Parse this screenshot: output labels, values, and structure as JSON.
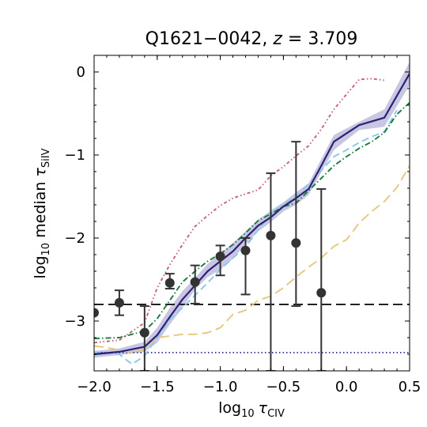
{
  "chart_data": {
    "type": "line",
    "title": "Q1621−0042, z = 3.709",
    "title_main": "Q1621−0042, ",
    "title_var": "z",
    "title_rest": " = 3.709",
    "xlabel": "log₁₀ τCIV",
    "ylabel": "log₁₀ median τSiIV",
    "xlabel_parts": {
      "pre": "log",
      "sub1": "10",
      "sym": "τ",
      "sub2": "CIV"
    },
    "ylabel_parts": {
      "pre": "log",
      "sub1": "10",
      "mid": " median ",
      "sym": "τ",
      "sub2": "SiIV"
    },
    "xlim": [
      -2.0,
      0.5
    ],
    "ylim": [
      -3.6,
      0.2
    ],
    "xticks": [
      -2.0,
      -1.5,
      -1.0,
      -0.5,
      0.0,
      0.5
    ],
    "xtick_labels": [
      "−2.0",
      "−1.5",
      "−1.0",
      "−0.5",
      "0.0",
      "0.5"
    ],
    "yticks": [
      0,
      -1,
      -2,
      -3
    ],
    "ytick_labels": [
      "0",
      "−1",
      "−2",
      "−3"
    ],
    "grid": false,
    "band": {
      "color": "#c9c6e3",
      "x": [
        -2.0,
        -1.8,
        -1.6,
        -1.5,
        -1.4,
        -1.3,
        -1.2,
        -1.1,
        -1.0,
        -0.9,
        -0.8,
        -0.7,
        -0.6,
        -0.5,
        -0.4,
        -0.3,
        -0.2,
        -0.1,
        0.1,
        0.3,
        0.5
      ],
      "upper": [
        -3.36,
        -3.33,
        -3.25,
        -3.08,
        -2.84,
        -2.64,
        -2.48,
        -2.31,
        -2.19,
        -2.06,
        -1.92,
        -1.78,
        -1.67,
        -1.57,
        -1.45,
        -1.34,
        -1.05,
        -0.76,
        -0.6,
        -0.45,
        0.12
      ],
      "lower": [
        -3.44,
        -3.41,
        -3.37,
        -3.26,
        -3.04,
        -2.84,
        -2.62,
        -2.47,
        -2.38,
        -2.25,
        -2.08,
        -1.92,
        -1.81,
        -1.68,
        -1.6,
        -1.48,
        -1.21,
        -0.94,
        -0.7,
        -0.66,
        -0.16
      ]
    },
    "series": [
      {
        "style": "solid",
        "color": "#2a2374",
        "width": 2.2,
        "x": [
          -2.0,
          -1.8,
          -1.6,
          -1.5,
          -1.4,
          -1.3,
          -1.2,
          -1.1,
          -1.0,
          -0.9,
          -0.8,
          -0.7,
          -0.6,
          -0.5,
          -0.4,
          -0.3,
          -0.2,
          -0.1,
          0.1,
          0.3,
          0.5
        ],
        "y": [
          -3.4,
          -3.37,
          -3.31,
          -3.17,
          -2.95,
          -2.74,
          -2.57,
          -2.4,
          -2.28,
          -2.16,
          -2.0,
          -1.85,
          -1.75,
          -1.62,
          -1.52,
          -1.41,
          -1.13,
          -0.84,
          -0.64,
          -0.55,
          -0.02
        ]
      },
      {
        "style": "dashed",
        "color": "#88c9e8",
        "width": 1.9,
        "x": [
          -2.0,
          -1.8,
          -1.7,
          -1.6,
          -1.5,
          -1.4,
          -1.3,
          -1.2,
          -1.1,
          -1.0,
          -0.9,
          -0.8,
          -0.7,
          -0.6,
          -0.5,
          -0.4,
          -0.3,
          -0.2,
          -0.1,
          0.0,
          0.1,
          0.2,
          0.3,
          0.4
        ],
        "y": [
          -3.38,
          -3.4,
          -3.52,
          -3.42,
          -3.2,
          -2.98,
          -2.84,
          -2.69,
          -2.54,
          -2.38,
          -2.24,
          -2.11,
          -1.9,
          -1.71,
          -1.59,
          -1.5,
          -1.35,
          -1.19,
          -1.02,
          -0.94,
          -0.85,
          -0.78,
          -0.72,
          -0.46
        ]
      },
      {
        "style": "dashdot",
        "color": "#1b7a3e",
        "width": 1.9,
        "x": [
          -2.0,
          -1.8,
          -1.6,
          -1.5,
          -1.4,
          -1.3,
          -1.2,
          -1.1,
          -1.0,
          -0.9,
          -0.8,
          -0.7,
          -0.6,
          -0.5,
          -0.4,
          -0.3,
          -0.2,
          -0.1,
          0.0,
          0.1,
          0.2,
          0.3,
          0.4,
          0.5
        ],
        "y": [
          -3.21,
          -3.2,
          -3.12,
          -2.97,
          -2.75,
          -2.53,
          -2.4,
          -2.28,
          -2.19,
          -2.08,
          -1.94,
          -1.79,
          -1.71,
          -1.62,
          -1.58,
          -1.43,
          -1.28,
          -1.13,
          -1.02,
          -0.92,
          -0.84,
          -0.73,
          -0.51,
          -0.37
        ]
      },
      {
        "style": "dashdotdot",
        "color": "#c76077",
        "width": 1.9,
        "x": [
          -2.0,
          -1.8,
          -1.6,
          -1.5,
          -1.4,
          -1.3,
          -1.2,
          -1.1,
          -1.0,
          -0.9,
          -0.8,
          -0.7,
          -0.6,
          -0.5,
          -0.4,
          -0.3,
          -0.2,
          -0.1,
          0.0,
          0.1,
          0.2,
          0.3
        ],
        "y": [
          -3.26,
          -3.23,
          -3.02,
          -2.6,
          -2.32,
          -2.08,
          -1.86,
          -1.73,
          -1.61,
          -1.52,
          -1.47,
          -1.42,
          -1.25,
          -1.14,
          -1.01,
          -0.89,
          -0.69,
          -0.45,
          -0.27,
          -0.09,
          -0.08,
          -0.1
        ]
      },
      {
        "style": "longdash",
        "color": "#e4c87e",
        "width": 1.9,
        "x": [
          -2.0,
          -1.9,
          -1.7,
          -1.6,
          -1.5,
          -1.4,
          -1.3,
          -1.2,
          -1.1,
          -1.0,
          -0.9,
          -0.8,
          -0.7,
          -0.6,
          -0.5,
          -0.4,
          -0.3,
          -0.2,
          -0.1,
          0.0,
          0.1,
          0.2,
          0.3,
          0.4,
          0.5
        ],
        "y": [
          -3.3,
          -3.32,
          -3.38,
          -3.34,
          -3.2,
          -3.18,
          -3.16,
          -3.16,
          -3.14,
          -3.08,
          -2.92,
          -2.87,
          -2.75,
          -2.7,
          -2.6,
          -2.47,
          -2.35,
          -2.24,
          -2.1,
          -2.02,
          -1.82,
          -1.68,
          -1.56,
          -1.39,
          -1.13
        ]
      }
    ],
    "hlines": [
      {
        "y": -2.8,
        "style": "longdash",
        "color": "#222222",
        "width": 2.0
      },
      {
        "y": -3.38,
        "style": "dotted",
        "color": "#2e2f9b",
        "width": 1.8
      }
    ],
    "points": {
      "color": "#333333",
      "x": [
        -2.0,
        -1.8,
        -1.6,
        -1.4,
        -1.2,
        -1.0,
        -0.8,
        -0.6,
        -0.4,
        -0.2
      ],
      "y": [
        -2.9,
        -2.78,
        -3.14,
        -2.54,
        -2.53,
        -2.22,
        -2.15,
        -1.97,
        -2.06,
        -2.66
      ],
      "err_lo": [
        -2.9,
        -2.93,
        -3.6,
        -2.61,
        -2.79,
        -2.45,
        -2.68,
        -3.6,
        -2.82,
        -3.6
      ],
      "err_hi": [
        -2.9,
        -2.63,
        -2.82,
        -2.43,
        -2.33,
        -2.09,
        -2.0,
        -1.22,
        -0.84,
        -1.41
      ]
    }
  }
}
